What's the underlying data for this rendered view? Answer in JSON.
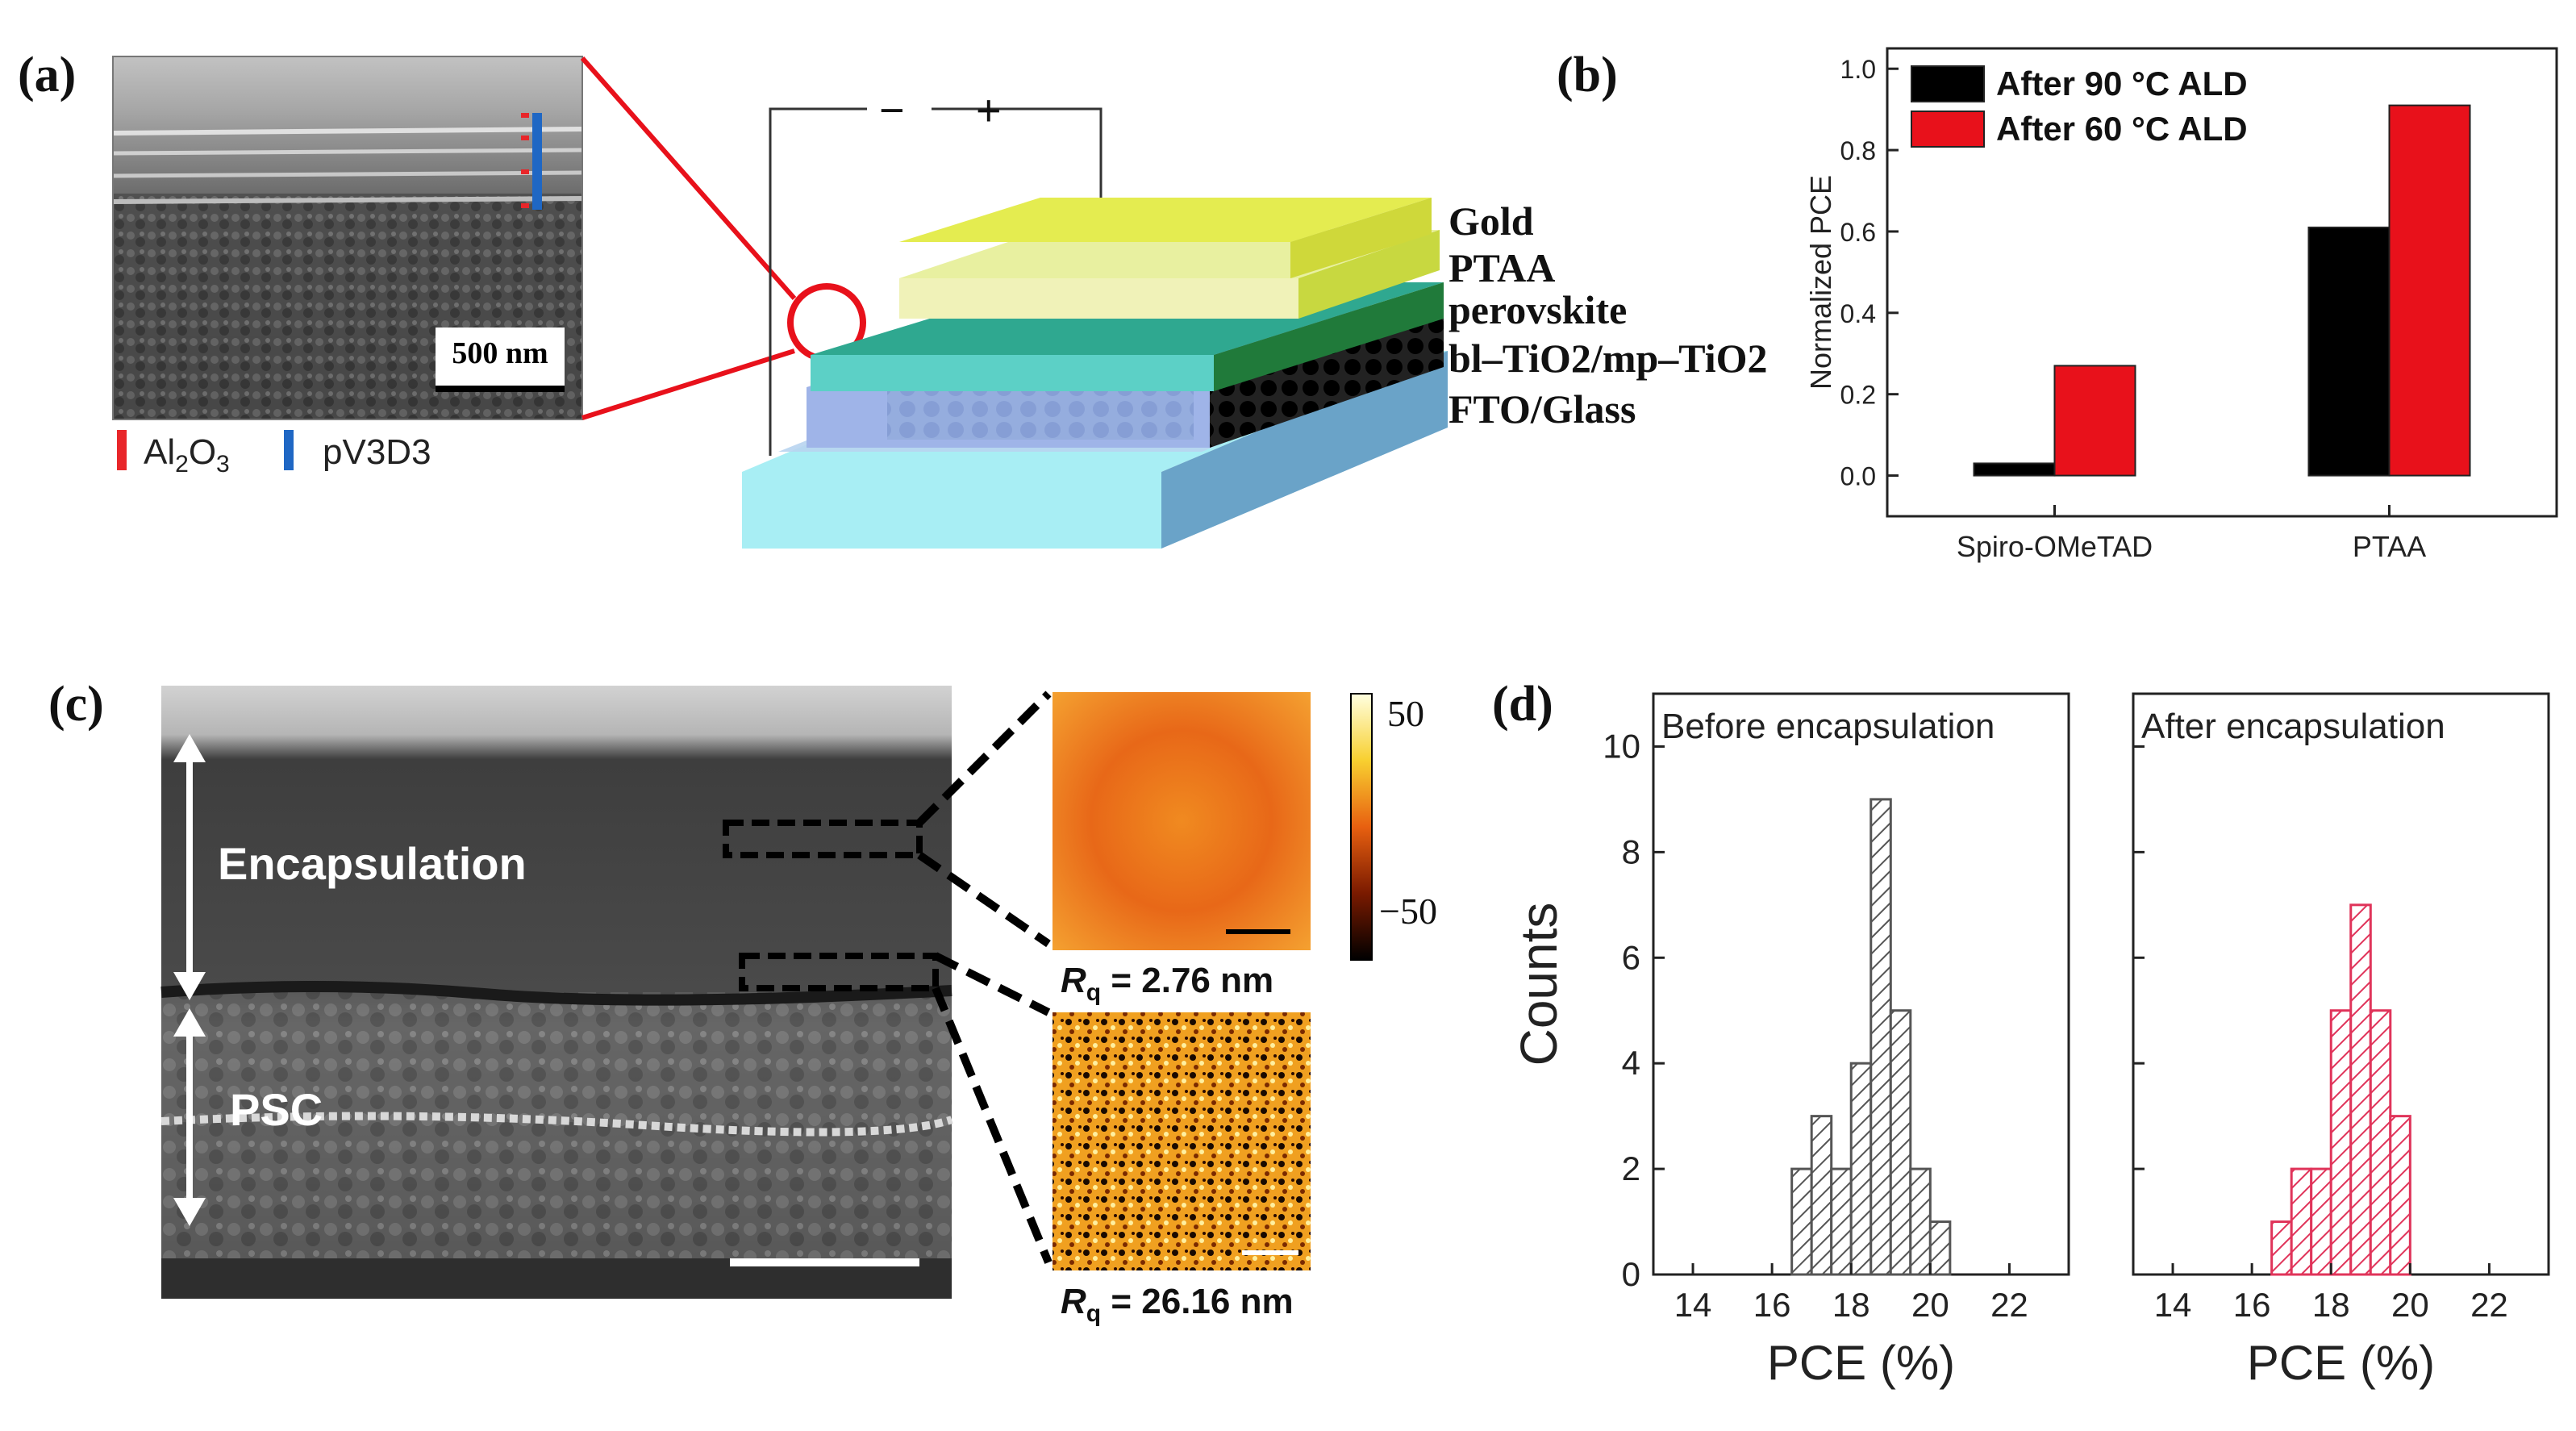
{
  "panels": {
    "a": {
      "label": "(a)",
      "scale_bar": "500 nm",
      "legend": [
        {
          "text_main": "Al",
          "sub1": "2",
          "mid": "O",
          "sub2": "3",
          "color": "#e8262a"
        },
        {
          "text_main": "pV3D3",
          "color": "#1f67c4"
        }
      ],
      "terminals": {
        "minus": "−",
        "plus": "+"
      },
      "layers": [
        "Gold",
        "PTAA",
        "perovskite",
        "bl–TiO2/mp–TiO2",
        "FTO/Glass"
      ]
    },
    "b": {
      "label": "(b)"
    },
    "c": {
      "label": "(c)",
      "encapsulation_label": "Encapsulation",
      "psc_label": "PSC",
      "colorbar_max": "50",
      "colorbar_min": "−50",
      "rq_top": "= 2.76 nm",
      "rq_bottom": "= 26.16 nm",
      "rq_symbol": "R",
      "rq_sub": "q"
    },
    "d": {
      "label": "(d)"
    }
  },
  "chart_data": [
    {
      "type": "bar",
      "panel": "b",
      "categories": [
        "Spiro-OMeTAD",
        "PTAA"
      ],
      "series": [
        {
          "name": "After 90 °C ALD",
          "values": [
            0.03,
            0.61
          ],
          "color": "#000000"
        },
        {
          "name": "After 60 °C ALD",
          "values": [
            0.27,
            0.91
          ],
          "color": "#e8111b"
        }
      ],
      "ylabel": "Normalized PCE",
      "ylim": [
        -0.1,
        1.05
      ],
      "yticks": [
        "0.0",
        "0.2",
        "0.4",
        "0.6",
        "0.8",
        "1.0"
      ],
      "legend_position": "top-left"
    },
    {
      "type": "histogram",
      "panel": "d",
      "title": "Before encapsulation",
      "bin_edges": [
        16.5,
        17,
        17.5,
        18,
        18.5,
        19,
        19.5,
        20,
        20.5
      ],
      "counts": [
        2,
        3,
        2,
        4,
        9,
        5,
        2,
        1
      ],
      "xlabel": "PCE (%)",
      "ylabel": "Counts",
      "xlim": [
        13,
        23.5
      ],
      "ylim": [
        0,
        11
      ],
      "xticks": [
        "14",
        "16",
        "18",
        "20",
        "22"
      ],
      "yticks": [
        "0",
        "2",
        "4",
        "6",
        "8",
        "10"
      ],
      "color": "#555555"
    },
    {
      "type": "histogram",
      "panel": "d",
      "title": "After encapsulation",
      "bin_edges": [
        16.5,
        17,
        17.5,
        18,
        18.5,
        19,
        19.5,
        20
      ],
      "counts": [
        1,
        2,
        2,
        5,
        7,
        5,
        3
      ],
      "xlabel": "PCE (%)",
      "xlim": [
        13,
        23.5
      ],
      "ylim": [
        0,
        11
      ],
      "xticks": [
        "14",
        "16",
        "18",
        "20",
        "22"
      ],
      "color": "#e0345a"
    }
  ]
}
